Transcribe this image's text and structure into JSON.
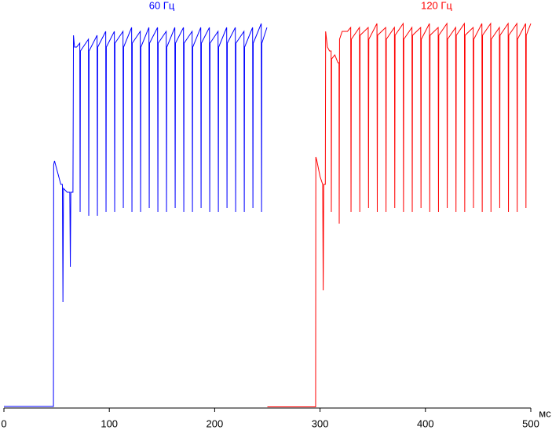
{
  "chart_data": {
    "type": "line",
    "x_label": "мс",
    "xlim": [
      0,
      500
    ],
    "xticks": [
      0,
      100,
      200,
      300,
      400,
      500
    ],
    "ylim": [
      0,
      100
    ],
    "grid": false,
    "series": [
      {
        "name": "60 Гц",
        "color": "#0000ff",
        "x": [
          0,
          47,
          47.2,
          48,
          50,
          52,
          54,
          55.5,
          56,
          56.5,
          60,
          62.5,
          63,
          63.5,
          65.5,
          66,
          67,
          69,
          72.0,
          72.3,
          72.6,
          80.2,
          80.5,
          80.8,
          88.4,
          88.7,
          89.0,
          96.6,
          96.9,
          97.2,
          104.8,
          105.1,
          105.4,
          113.0,
          113.3,
          113.6,
          121.2,
          121.5,
          121.8,
          129.4,
          129.7,
          130.0,
          137.6,
          137.9,
          138.2,
          145.8,
          146.1,
          146.4,
          154.0,
          154.3,
          154.6,
          162.2,
          162.5,
          162.8,
          170.4,
          170.7,
          171.0,
          178.6,
          178.9,
          179.2,
          186.8,
          187.1,
          187.4,
          195.0,
          195.3,
          195.6,
          203.2,
          203.5,
          203.8,
          211.4,
          211.7,
          212.0,
          219.6,
          219.9,
          220.2,
          227.8,
          228.1,
          228.4,
          236.0,
          236.3,
          236.6,
          244.2,
          244.5,
          244.8,
          249.6
        ],
        "values": [
          0.4,
          0.4,
          62,
          63,
          61,
          59,
          57,
          57,
          27,
          56,
          55,
          55,
          36,
          55,
          55,
          95,
          92,
          92,
          93,
          50,
          91,
          94,
          49,
          91,
          95,
          49,
          92,
          96,
          50,
          92,
          96,
          50,
          93,
          96,
          51,
          92,
          97,
          50,
          93,
          96,
          50,
          92,
          97,
          51,
          93,
          97,
          50,
          93,
          96,
          50,
          92,
          97,
          51,
          93,
          97,
          50,
          93,
          96,
          50,
          92,
          97,
          51,
          93,
          97,
          50,
          93,
          96,
          50,
          92,
          97,
          51,
          93,
          97,
          50,
          93,
          96,
          50,
          92,
          97,
          51,
          93,
          98,
          50,
          93,
          97
        ]
      },
      {
        "name": "120 Гц",
        "color": "#ff0000",
        "x": [
          250,
          295.8,
          296,
          297,
          300,
          302.5,
          303,
          303.5,
          305,
          305.3,
          307,
          309,
          310.5,
          310.7,
          311,
          314,
          317,
          318,
          318.2,
          318.5,
          321,
          326,
          329.1,
          329.4,
          329.7,
          337.4,
          337.7,
          338.0,
          345.7,
          346.0,
          346.3,
          354.0,
          354.3,
          354.6,
          362.3,
          362.6,
          362.9,
          370.6,
          370.9,
          371.2,
          378.9,
          379.2,
          379.5,
          387.2,
          387.5,
          387.8,
          395.5,
          395.8,
          396.1,
          403.8,
          404.1,
          404.4,
          412.1,
          412.4,
          412.7,
          420.4,
          420.7,
          421.0,
          428.7,
          429.0,
          429.3,
          437.0,
          437.3,
          437.6,
          445.3,
          445.6,
          445.9,
          453.6,
          453.9,
          454.2,
          461.9,
          462.2,
          462.5,
          470.2,
          470.5,
          470.8,
          478.5,
          478.8,
          479.1,
          486.8,
          487.1,
          487.4,
          495.1,
          495.4,
          495.7,
          500
        ],
        "values": [
          0.3,
          0.3,
          64,
          63,
          59,
          57,
          30,
          57,
          57,
          96,
          92,
          91,
          91,
          50,
          89,
          90,
          88,
          88,
          47,
          94,
          96,
          96,
          97,
          50,
          94,
          97,
          50,
          95,
          97,
          51,
          94,
          98,
          50,
          95,
          97,
          50,
          94,
          97,
          51,
          95,
          98,
          50,
          94,
          97,
          50,
          95,
          97,
          51,
          94,
          98,
          50,
          95,
          97,
          50,
          95,
          98,
          51,
          94,
          97,
          50,
          95,
          98,
          50,
          95,
          97,
          51,
          94,
          98,
          50,
          95,
          98,
          50,
          94,
          97,
          51,
          95,
          98,
          50,
          95,
          98,
          50,
          94,
          98,
          51,
          95,
          98
        ]
      }
    ]
  }
}
